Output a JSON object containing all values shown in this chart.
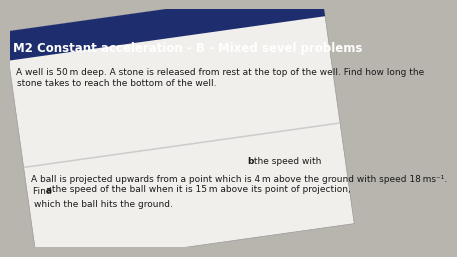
{
  "title": "M2 Constant acceleration - B - Mixed sevel problems",
  "title_bg": "#1e2d6e",
  "title_color": "#ffffff",
  "title_fontsize": 8.5,
  "page_bg": "#b8b5ae",
  "white_bg": "#f0efec",
  "text_fontsize": 6.5,
  "text_color": "#1a1a1a",
  "q1_line1": "A well is 50 m deep. A stone is released from rest at the top of the well. Find how long the",
  "q1_line2": "stone takes to reach the bottom of the well.",
  "q2_line1": "A ball is projected upwards from a point which is 4 m above the ground with speed 18 ms⁻¹.",
  "q2_line2a": "Find ",
  "q2_line2b": "a",
  "q2_line2c": " the speed of the ball when it is 15 m above its point of projection, ",
  "q2_line2d": "b",
  "q2_line2e": " the speed with",
  "q2_line3": "which the ball hits the ground.",
  "rotation": 8.0
}
